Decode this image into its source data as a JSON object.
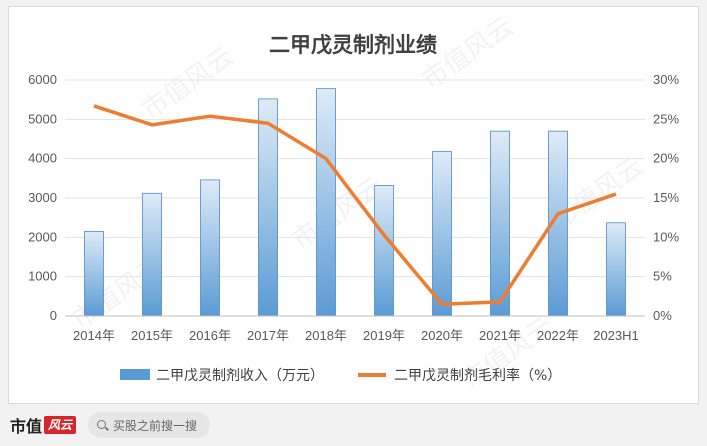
{
  "chart_data": {
    "type": "bar",
    "title": "二甲戊灵制剂业绩",
    "categories": [
      "2014年",
      "2015年",
      "2016年",
      "2017年",
      "2018年",
      "2019年",
      "2020年",
      "2021年",
      "2022年",
      "2023H1"
    ],
    "y_ticks": [
      "0",
      "1000",
      "2000",
      "3000",
      "4000",
      "5000",
      "6000"
    ],
    "y2_ticks": [
      "0%",
      "5%",
      "10%",
      "15%",
      "20%",
      "25%",
      "30%"
    ],
    "ylim": [
      0,
      6000
    ],
    "y2lim": [
      0,
      30
    ],
    "legend_position": "bottom",
    "grid": true,
    "series": [
      {
        "name": "二甲戊灵制剂收入（万元）",
        "type": "bar",
        "axis": "left",
        "color": "#5b9bd5",
        "values": [
          2150,
          3120,
          3460,
          5520,
          5780,
          3320,
          4180,
          4700,
          4700,
          2370
        ]
      },
      {
        "name": "二甲戊灵制剂毛利率（%）",
        "type": "line",
        "axis": "right",
        "color": "#ed7d31",
        "values": [
          26.7,
          24.3,
          25.4,
          24.5,
          20.0,
          10.3,
          1.5,
          1.8,
          13.0,
          15.5
        ]
      }
    ]
  },
  "watermark": "市值风云",
  "footer": {
    "brand_text": "市值",
    "brand_mark": "风云",
    "search_placeholder": "买股之前搜一搜"
  }
}
